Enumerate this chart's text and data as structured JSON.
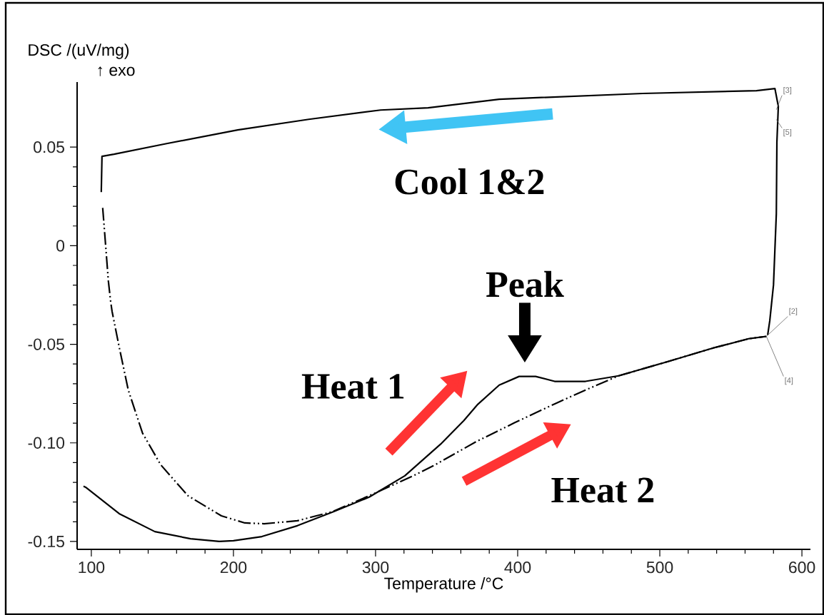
{
  "chart_data": {
    "type": "line",
    "xlabel": "Temperature /°C",
    "ylabel": "DSC /(uV/mg)",
    "xlim": [
      90,
      606
    ],
    "ylim": [
      -0.154,
      0.083
    ],
    "xticks": [
      100,
      200,
      300,
      400,
      500,
      600
    ],
    "yticks": [
      0.05,
      0,
      -0.05,
      {
        "value": -0.1,
        "label": "-0.10"
      },
      -0.15
    ],
    "series": [
      {
        "color": "#000000",
        "line_style": "solid",
        "x": [
          94.5,
          96,
          119.6,
          144.7,
          169.8,
          190,
          200,
          220,
          245,
          270,
          295.5,
          320.6,
          345.7,
          362,
          372,
          387,
          401,
          412.6,
          426,
          447.7,
          471,
          504.5,
          538,
          563,
          575
        ],
        "values": [
          -0.122,
          -0.1225,
          -0.1359,
          -0.145,
          -0.1486,
          -0.15,
          -0.1496,
          -0.1475,
          -0.142,
          -0.135,
          -0.1275,
          -0.1167,
          -0.1007,
          -0.0888,
          -0.0804,
          -0.0707,
          -0.0663,
          -0.0663,
          -0.0688,
          -0.0688,
          -0.066,
          -0.059,
          -0.0518,
          -0.0471,
          -0.046
        ]
      },
      {
        "color": "#000000",
        "line_style": "solid",
        "x": [
          575.9,
          577.4,
          580,
          582,
          582.4,
          583.4,
          581,
          568,
          488,
          387,
          337,
          303.5,
          253,
          203,
          153,
          116,
          107.5,
          107
        ],
        "values": [
          -0.0453,
          -0.038,
          -0.0199,
          0.0163,
          0.0525,
          0.0707,
          0.0797,
          0.0786,
          0.0772,
          0.0743,
          0.0699,
          0.0688,
          0.0641,
          0.0587,
          0.0518,
          0.0464,
          0.0453,
          0.0272
        ]
      },
      {
        "color": "#000000",
        "line_style": "dashed",
        "x": [
          108,
          109.5,
          112,
          113.6,
          114.6,
          119.6,
          126,
          136,
          148.7,
          168,
          191.5,
          208,
          221.6,
          245,
          270,
          295.5,
          325.6,
          340.7,
          371,
          397.5,
          427.6,
          447.7,
          471,
          504.5,
          538,
          563,
          575
        ],
        "values": [
          0.0192,
          0.0054,
          -0.018,
          -0.0283,
          -0.0333,
          -0.0514,
          -0.0732,
          -0.095,
          -0.111,
          -0.1268,
          -0.137,
          -0.1406,
          -0.141,
          -0.1395,
          -0.1348,
          -0.1268,
          -0.117,
          -0.1116,
          -0.0993,
          -0.0899,
          -0.0797,
          -0.0732,
          -0.066,
          -0.059,
          -0.0518,
          -0.0471,
          -0.046
        ]
      }
    ],
    "annotations": [
      {
        "text": "Peak",
        "x": 405,
        "y": -0.066
      },
      "Cool 1&2",
      "Heat 1",
      "Heat 2",
      "↑ exo",
      {
        "text": "[3]",
        "x": 582,
        "y": 0.069
      },
      {
        "text": "[5]",
        "x": 582,
        "y": 0.064
      },
      {
        "text": "[2]",
        "x": 575,
        "y": -0.046
      },
      {
        "text": "[4]",
        "x": 575,
        "y": -0.046
      }
    ]
  }
}
